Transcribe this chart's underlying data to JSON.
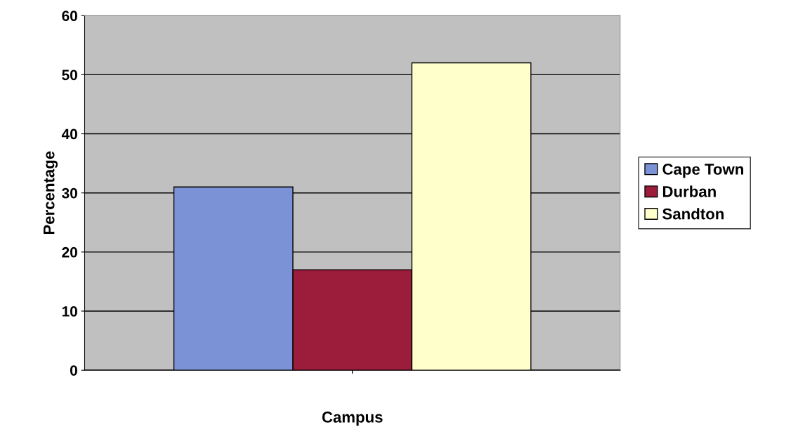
{
  "chart_data": {
    "type": "bar",
    "xlabel": "Campus",
    "ylabel": "Percentage",
    "categories": [
      null
    ],
    "series": [
      {
        "name": "Cape Town",
        "color": "#7b93d6",
        "values": [
          31
        ]
      },
      {
        "name": "Durban",
        "color": "#9c1c3c",
        "values": [
          17
        ]
      },
      {
        "name": "Sandton",
        "color": "#ffffcc",
        "values": [
          52
        ]
      }
    ],
    "ylim": [
      0,
      60
    ],
    "yticks": [
      0,
      10,
      20,
      30,
      40,
      50,
      60
    ],
    "grid": "y",
    "legend": "right"
  }
}
